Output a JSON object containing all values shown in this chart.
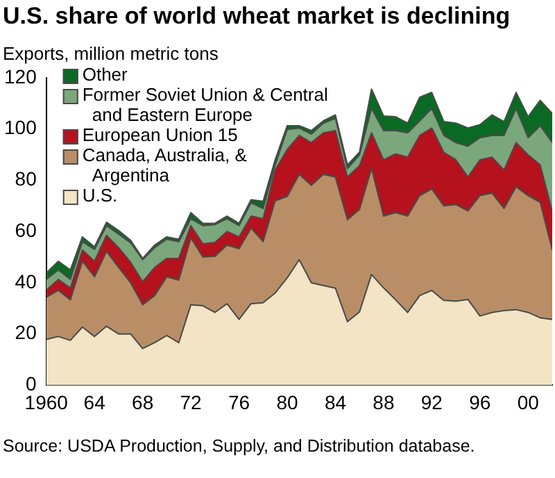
{
  "chart_data": {
    "type": "area",
    "title": "U.S. share of world wheat market is declining",
    "ylabel": "Exports, million metric tons",
    "annotations": [
      "Source: USDA Production, Supply, and Distribution database."
    ],
    "stacked": true,
    "legend": "top left",
    "x": [
      1960,
      1961,
      1962,
      1963,
      1964,
      1965,
      1966,
      1967,
      1968,
      1969,
      1970,
      1971,
      1972,
      1973,
      1974,
      1975,
      1976,
      1977,
      1978,
      1979,
      1980,
      1981,
      1982,
      1983,
      1984,
      1985,
      1986,
      1987,
      1988,
      1989,
      1990,
      1991,
      1992,
      1993,
      1994,
      1995,
      1996,
      1997,
      1998,
      1999,
      2000,
      2001,
      2002
    ],
    "xlim": [
      1960,
      2002
    ],
    "xticks": [
      1960,
      {
        "value": 1964,
        "label": "64"
      },
      {
        "value": 1968,
        "label": "68"
      },
      {
        "value": 1972,
        "label": "72"
      },
      {
        "value": 1976,
        "label": "76"
      },
      {
        "value": 1980,
        "label": "80"
      },
      {
        "value": 1984,
        "label": "84"
      },
      {
        "value": 1988,
        "label": "88"
      },
      {
        "value": 1992,
        "label": "92"
      },
      {
        "value": 1996,
        "label": "96"
      },
      {
        "value": 2000,
        "label": "00"
      }
    ],
    "ylim": [
      0,
      120
    ],
    "yticks": [
      0,
      20,
      40,
      60,
      80,
      100,
      120
    ],
    "series": [
      {
        "name": "U.S.",
        "color": "#f2e4c4",
        "values": [
          17.9,
          19,
          17.5,
          22.7,
          19,
          23,
          20,
          20,
          14.3,
          16.6,
          19.4,
          16.6,
          31.4,
          31,
          28.4,
          31.8,
          25.7,
          31.8,
          32.2,
          36,
          41.9,
          49,
          40,
          38.9,
          37.9,
          24.8,
          28.6,
          43.2,
          38,
          33.3,
          28.4,
          35,
          37,
          33.1,
          32.8,
          33.5,
          27,
          28.4,
          29.1,
          29.5,
          28.4,
          26.3,
          25.7
        ]
      },
      {
        "name": "Canada, Australia, & Argentina",
        "color": "#b98e66",
        "values": [
          16.4,
          18,
          15.8,
          25.7,
          23.3,
          29.2,
          26,
          20,
          17.1,
          18.4,
          22.9,
          24.4,
          26.1,
          19,
          21.9,
          22.9,
          27.6,
          29.5,
          23.8,
          36,
          31.8,
          33.3,
          38,
          43.4,
          43.4,
          39.8,
          40,
          41.4,
          28,
          34.1,
          37.6,
          39,
          39.6,
          36.9,
          37.7,
          34.5,
          47,
          46.6,
          39.9,
          48,
          45.6,
          45.1,
          27.1
        ]
      },
      {
        "name": "European Union 15",
        "color": "#b5121e",
        "values": [
          2.8,
          4.3,
          4.6,
          4.4,
          6.1,
          6.3,
          7.7,
          8,
          9,
          11,
          7.2,
          8.5,
          4.8,
          5.2,
          5.4,
          5.3,
          4.6,
          4.7,
          9,
          12,
          18.3,
          15.2,
          16.7,
          16.2,
          18.1,
          16.7,
          17.1,
          13.9,
          22,
          22.9,
          23,
          23.5,
          23.8,
          20.9,
          17.5,
          13.3,
          14,
          14,
          15,
          17.2,
          15.9,
          14.6,
          15.2
        ]
      },
      {
        "name": "Former Soviet Union & Central and Eastern Europe",
        "color": "#7ba77c",
        "values": [
          4.2,
          3.7,
          3.4,
          3.2,
          4.6,
          3.8,
          5.3,
          7.6,
          8.6,
          7.7,
          7.5,
          6.5,
          2.7,
          7.1,
          7,
          5,
          4.4,
          5.2,
          4,
          2,
          7.8,
          2.9,
          3.3,
          3.8,
          4.8,
          3.3,
          4.2,
          9.5,
          11.4,
          9.1,
          9.5,
          5.7,
          7.6,
          6.6,
          6.7,
          12,
          8.6,
          8.5,
          13.5,
          13.3,
          6.7,
          15.3,
          26.7
        ]
      },
      {
        "name": "Other",
        "color": "#0a6a24",
        "values": [
          2.5,
          3.4,
          3.7,
          1.9,
          1,
          1.3,
          1.4,
          1,
          0.5,
          1,
          0.9,
          1,
          2.4,
          0.9,
          0.5,
          1,
          0.9,
          1.2,
          2.8,
          2,
          1.5,
          0.9,
          1.4,
          0.9,
          1.3,
          1.4,
          1.1,
          7.6,
          5.7,
          5.4,
          3.8,
          9.2,
          6.3,
          5.4,
          7.6,
          7.1,
          5.1,
          8,
          5.4,
          6.3,
          8.2,
          9.9,
          11.4
        ]
      }
    ]
  }
}
